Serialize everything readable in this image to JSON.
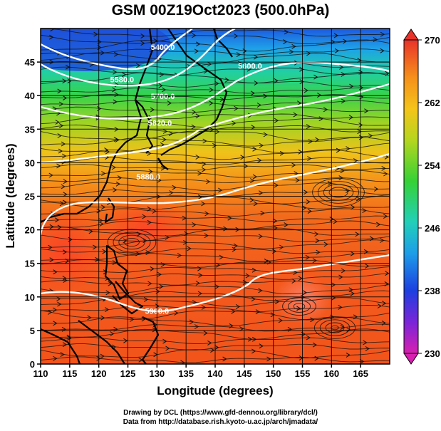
{
  "title": "GSM 00Z19Oct2023 (500.0hPa)",
  "xlabel": "Longitude (degrees)",
  "ylabel": "Latitude  (degrees)",
  "credits": {
    "line1": "Drawing by DCL (https://www.gfd-dennou.org/library/dcl/)",
    "line2": "Data from http://database.rish.kyoto-u.ac.jp/arch/jmadata/"
  },
  "chart_data": {
    "type": "heatmap",
    "title": "GSM 00Z19Oct2023 (500.0hPa)",
    "xlabel": "Longitude (degrees)",
    "ylabel": "Latitude  (degrees)",
    "xlim": [
      110,
      170
    ],
    "ylim": [
      0,
      50
    ],
    "x_ticks": [
      110,
      115,
      120,
      125,
      130,
      135,
      140,
      145,
      150,
      155,
      160,
      165
    ],
    "y_ticks": [
      0,
      5,
      10,
      15,
      20,
      25,
      30,
      35,
      40,
      45
    ],
    "grid": true,
    "colorbar": {
      "position": "right",
      "range": [
        230,
        270
      ],
      "tick_labels": [
        "230",
        "238",
        "246",
        "254",
        "262",
        "270"
      ]
    },
    "contours": [
      {
        "label": "5400.0",
        "lon": 131.0,
        "lat": 46.8
      },
      {
        "label": "5580.0",
        "lon": 124.0,
        "lat": 42.0
      },
      {
        "label": "5700.0",
        "lon": 131.0,
        "lat": 39.5
      },
      {
        "label": "5820.0",
        "lon": 130.5,
        "lat": 35.5
      },
      {
        "label": "5880.0",
        "lon": 128.5,
        "lat": 27.5
      },
      {
        "label": "5900.0",
        "lon": 130.0,
        "lat": 7.5
      },
      {
        "label": "5600.0",
        "lon": 146.0,
        "lat": 44.0
      }
    ]
  }
}
